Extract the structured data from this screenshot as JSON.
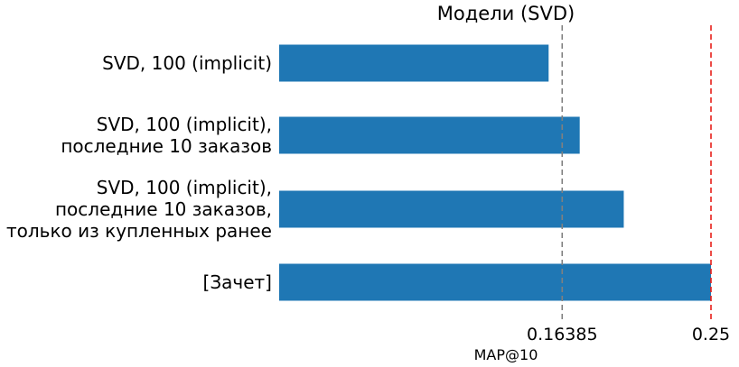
{
  "chart_data": {
    "type": "bar",
    "orientation": "horizontal",
    "title": "Модели (SVD)",
    "xlabel": "MAP@10",
    "ylabel": "",
    "categories": [
      [
        "SVD, 100 (implicit)"
      ],
      [
        "SVD, 100 (implicit),",
        "последние 10 заказов"
      ],
      [
        "SVD, 100 (implicit),",
        "последние 10 заказов,",
        "только из купленных ранее"
      ],
      [
        "[Зачет]"
      ]
    ],
    "values": [
      0.156,
      0.174,
      0.1995,
      0.25
    ],
    "xlim": [
      0,
      0.25
    ],
    "xticks": [
      {
        "value": 0.16385,
        "label": "0.16385"
      },
      {
        "value": 0.25,
        "label": "0.25"
      }
    ],
    "reference_lines": [
      {
        "value": 0.16385,
        "color": "#808080",
        "style": "dashed"
      },
      {
        "value": 0.25,
        "color": "#e8201a",
        "style": "dashed"
      }
    ],
    "bar_color": "#1f77b4",
    "grid": false,
    "legend": "none"
  }
}
